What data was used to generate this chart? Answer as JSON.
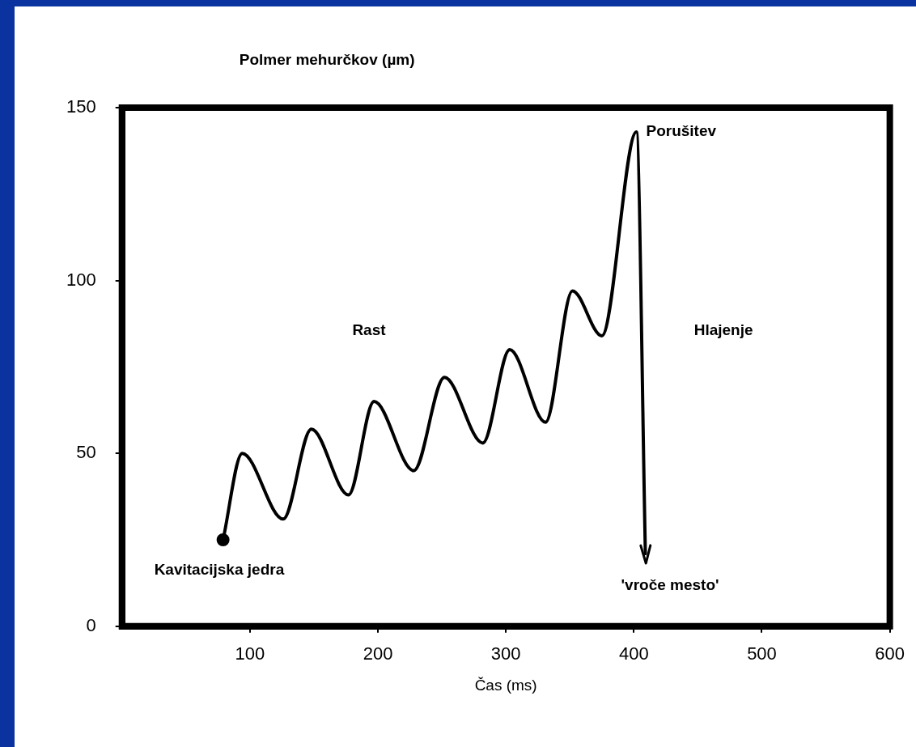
{
  "chart_data": {
    "type": "line",
    "ylabel": "Polmer mehurčkov (µm)",
    "xlabel": "Čas (ms)",
    "xlim": [
      0,
      600
    ],
    "xticks": [
      100,
      200,
      300,
      400,
      500,
      600
    ],
    "ylim": [
      0,
      150
    ],
    "yticks": [
      0,
      50,
      100,
      150
    ],
    "grid": false,
    "legend": false,
    "series": [
      {
        "color": "#000000",
        "x": [
          79,
          94,
          126,
          148,
          177,
          197,
          228,
          252,
          282,
          303,
          331,
          352,
          375,
          402,
          409
        ],
        "values": [
          25,
          50,
          31,
          57,
          38,
          65,
          45,
          72,
          53,
          80,
          59,
          97,
          84,
          143,
          21
        ]
      }
    ],
    "annotations": [
      {
        "text": "Kavitacijska jedra",
        "x": 79,
        "y": 25
      },
      "Rast",
      {
        "text": "Porušitev",
        "x": 402,
        "y": 143
      },
      "Hlajenje",
      {
        "text": "'vroče mesto'",
        "x": 409,
        "y": 21
      }
    ]
  }
}
